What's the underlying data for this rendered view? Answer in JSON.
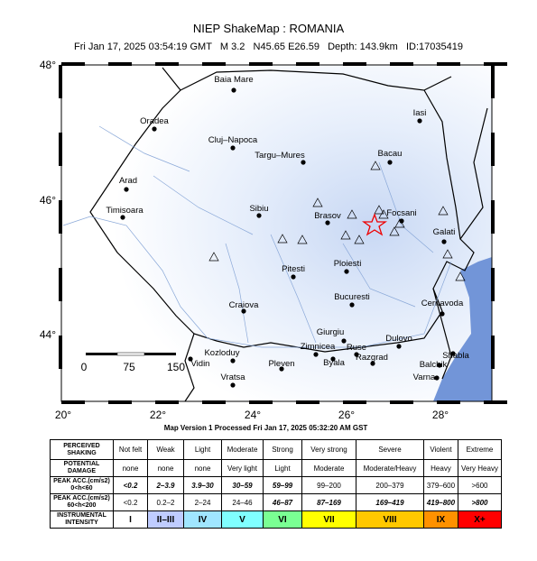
{
  "header": {
    "title": "NIEP ShakeMap : ROMANIA",
    "subtitle": "Fri Jan 17, 2025 03:54:19 GMT   M 3.2   N45.65 E26.59   Depth: 143.9km   ID:17035419"
  },
  "map": {
    "lat_labels": [
      "48°",
      "46°",
      "44°"
    ],
    "lon_labels": [
      "20°",
      "22°",
      "24°",
      "26°",
      "28°"
    ],
    "scale_labels": [
      "0",
      "75",
      "150"
    ],
    "cities": [
      "Baia Mare",
      "Oradea",
      "Cluj–Napoca",
      "Targu–Mures",
      "Iasi",
      "Bacau",
      "Arad",
      "Timisoara",
      "Sibiu",
      "Brasov",
      "Focsani",
      "Galati",
      "Pitesti",
      "Ploiesti",
      "Bucuresti",
      "Cernavoda",
      "Craiova",
      "Giurgiu",
      "Dulovo",
      "Zimnicea",
      "Ruse",
      "Kozloduy",
      "Vidin",
      "Pleven",
      "Byala",
      "Razgrad",
      "Shabla",
      "Balchik",
      "Varna",
      "Vratsa"
    ]
  },
  "footer": "Map Version 1 Processed Fri Jan 17, 2025 05:32:20 AM GST",
  "table": {
    "rows": [
      {
        "label": "PERCEIVED SHAKING",
        "cells": [
          "Not felt",
          "Weak",
          "Light",
          "Moderate",
          "Strong",
          "Very strong",
          "Severe",
          "Violent",
          "Extreme"
        ]
      },
      {
        "label": "POTENTIAL DAMAGE",
        "cells": [
          "none",
          "none",
          "none",
          "Very light",
          "Light",
          "Moderate",
          "Moderate/Heavy",
          "Heavy",
          "Very Heavy"
        ]
      },
      {
        "label": "PEAK ACC.(cm/s2) 0<h<60",
        "cells": [
          "<0.2",
          "2–3.9",
          "3.9–30",
          "30–59",
          "59–99",
          "99–200",
          "200–379",
          "379–600",
          ">600"
        ]
      },
      {
        "label": "PEAK ACC.(cm/s2) 60<h<200",
        "cells": [
          "<0.2",
          "0.2–2",
          "2–24",
          "24–46",
          "46–87",
          "87–169",
          "169–419",
          "419–800",
          ">800"
        ]
      },
      {
        "label": "INSTRUMENTAL INTENSITY",
        "cells": [
          "I",
          "II–III",
          "IV",
          "V",
          "VI",
          "VII",
          "VIII",
          "IX",
          "X+"
        ]
      }
    ],
    "intensity_colors": [
      "#ffffff",
      "#bfccff",
      "#a0e6ff",
      "#80ffff",
      "#7aff93",
      "#ffff00",
      "#ffc800",
      "#ff9100",
      "#ff0000"
    ]
  }
}
